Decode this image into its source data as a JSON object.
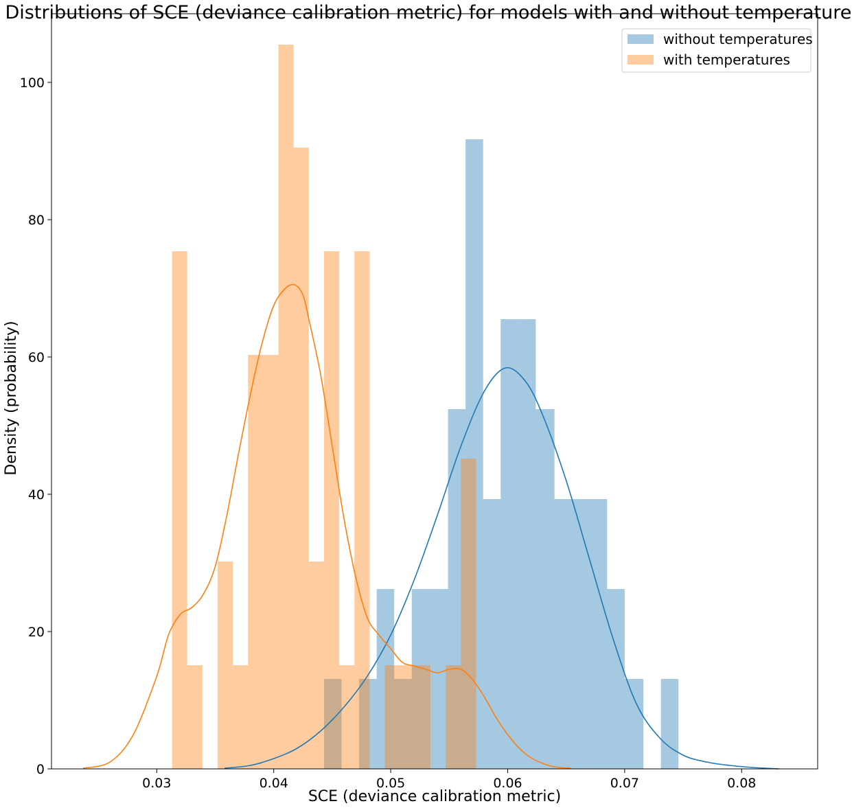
{
  "chart_data": {
    "type": "histogram",
    "title": "Distributions of SCE (deviance calibration metric) for models with and without temperatures",
    "xlabel": "SCE (deviance calibration metric)",
    "ylabel": "Density (probability)",
    "xlim": [
      0.021,
      0.0865
    ],
    "ylim": [
      0,
      110
    ],
    "xticks": [
      0.03,
      0.04,
      0.05,
      0.06,
      0.07,
      0.08
    ],
    "yticks": [
      0,
      20,
      40,
      60,
      80,
      100
    ],
    "legend_position": "top-right",
    "grid": false,
    "series": [
      {
        "name": "without temperatures",
        "color": "#1f77b4",
        "bar_color": "#a6c8e0",
        "bin_width": 0.0015,
        "bins": [
          {
            "x0": 0.0443,
            "x1": 0.0458,
            "height": 13.1
          },
          {
            "x0": 0.0473,
            "x1": 0.0488,
            "height": 13.1
          },
          {
            "x0": 0.0488,
            "x1": 0.0503,
            "height": 26.2
          },
          {
            "x0": 0.0503,
            "x1": 0.0518,
            "height": 13.1
          },
          {
            "x0": 0.0518,
            "x1": 0.0534,
            "height": 26.2
          },
          {
            "x0": 0.0534,
            "x1": 0.0549,
            "height": 26.2
          },
          {
            "x0": 0.0549,
            "x1": 0.0564,
            "height": 52.4
          },
          {
            "x0": 0.0564,
            "x1": 0.0579,
            "height": 91.7
          },
          {
            "x0": 0.0579,
            "x1": 0.0594,
            "height": 39.3
          },
          {
            "x0": 0.0594,
            "x1": 0.0609,
            "height": 65.5
          },
          {
            "x0": 0.0609,
            "x1": 0.0624,
            "height": 65.5
          },
          {
            "x0": 0.0624,
            "x1": 0.064,
            "height": 52.4
          },
          {
            "x0": 0.064,
            "x1": 0.0655,
            "height": 39.3
          },
          {
            "x0": 0.0655,
            "x1": 0.067,
            "height": 39.3
          },
          {
            "x0": 0.067,
            "x1": 0.0685,
            "height": 39.3
          },
          {
            "x0": 0.0685,
            "x1": 0.07,
            "height": 26.2
          },
          {
            "x0": 0.07,
            "x1": 0.0716,
            "height": 13.1
          },
          {
            "x0": 0.0731,
            "x1": 0.0746,
            "height": 13.1
          }
        ],
        "kde": [
          [
            0.0358,
            0.1
          ],
          [
            0.038,
            0.5
          ],
          [
            0.04,
            1.5
          ],
          [
            0.042,
            3.0
          ],
          [
            0.044,
            5.5
          ],
          [
            0.046,
            9.0
          ],
          [
            0.048,
            13.5
          ],
          [
            0.05,
            19.5
          ],
          [
            0.052,
            27.5
          ],
          [
            0.054,
            37.0
          ],
          [
            0.056,
            47.0
          ],
          [
            0.058,
            55.0
          ],
          [
            0.0598,
            58.4
          ],
          [
            0.0615,
            56.5
          ],
          [
            0.063,
            51.5
          ],
          [
            0.065,
            42.0
          ],
          [
            0.067,
            30.5
          ],
          [
            0.069,
            19.0
          ],
          [
            0.071,
            9.5
          ],
          [
            0.073,
            4.5
          ],
          [
            0.075,
            2.0
          ],
          [
            0.077,
            1.0
          ],
          [
            0.079,
            0.5
          ],
          [
            0.081,
            0.2
          ],
          [
            0.0832,
            0.0
          ]
        ]
      },
      {
        "name": "with temperatures",
        "color": "#ff7f0e",
        "bar_color": "#ffc999",
        "bin_width": 0.0013,
        "bins": [
          {
            "x0": 0.0313,
            "x1": 0.0326,
            "height": 75.4
          },
          {
            "x0": 0.0326,
            "x1": 0.0339,
            "height": 15.1
          },
          {
            "x0": 0.0352,
            "x1": 0.0365,
            "height": 30.2
          },
          {
            "x0": 0.0365,
            "x1": 0.0378,
            "height": 15.1
          },
          {
            "x0": 0.0378,
            "x1": 0.0391,
            "height": 60.3
          },
          {
            "x0": 0.0391,
            "x1": 0.0404,
            "height": 60.3
          },
          {
            "x0": 0.0404,
            "x1": 0.0417,
            "height": 105.5
          },
          {
            "x0": 0.0417,
            "x1": 0.043,
            "height": 90.5
          },
          {
            "x0": 0.043,
            "x1": 0.0443,
            "height": 30.2
          },
          {
            "x0": 0.0443,
            "x1": 0.0456,
            "height": 75.4
          },
          {
            "x0": 0.0456,
            "x1": 0.0469,
            "height": 15.1
          },
          {
            "x0": 0.0469,
            "x1": 0.0482,
            "height": 75.4
          },
          {
            "x0": 0.0495,
            "x1": 0.0508,
            "height": 15.1
          },
          {
            "x0": 0.0508,
            "x1": 0.0521,
            "height": 15.1
          },
          {
            "x0": 0.0521,
            "x1": 0.0534,
            "height": 15.1
          },
          {
            "x0": 0.0547,
            "x1": 0.056,
            "height": 15.1
          },
          {
            "x0": 0.056,
            "x1": 0.0573,
            "height": 45.2
          }
        ],
        "kde": [
          [
            0.0237,
            0.1
          ],
          [
            0.026,
            1.0
          ],
          [
            0.028,
            5.0
          ],
          [
            0.03,
            13.5
          ],
          [
            0.031,
            19.5
          ],
          [
            0.032,
            22.5
          ],
          [
            0.033,
            23.5
          ],
          [
            0.034,
            25.5
          ],
          [
            0.035,
            29.5
          ],
          [
            0.036,
            37.0
          ],
          [
            0.037,
            46.0
          ],
          [
            0.038,
            54.5
          ],
          [
            0.039,
            62.0
          ],
          [
            0.04,
            67.5
          ],
          [
            0.041,
            70.0
          ],
          [
            0.0418,
            70.5
          ],
          [
            0.0425,
            69.0
          ],
          [
            0.043,
            65.5
          ],
          [
            0.044,
            57.5
          ],
          [
            0.045,
            47.0
          ],
          [
            0.046,
            36.5
          ],
          [
            0.047,
            28.0
          ],
          [
            0.048,
            22.0
          ],
          [
            0.049,
            19.5
          ],
          [
            0.05,
            17.5
          ],
          [
            0.051,
            15.5
          ],
          [
            0.052,
            15.0
          ],
          [
            0.053,
            14.5
          ],
          [
            0.054,
            14.0
          ],
          [
            0.055,
            14.5
          ],
          [
            0.056,
            14.5
          ],
          [
            0.057,
            13.0
          ],
          [
            0.058,
            10.5
          ],
          [
            0.059,
            7.5
          ],
          [
            0.06,
            5.0
          ],
          [
            0.061,
            3.0
          ],
          [
            0.062,
            1.6
          ],
          [
            0.063,
            0.8
          ],
          [
            0.064,
            0.3
          ],
          [
            0.0654,
            0.1
          ]
        ]
      }
    ]
  }
}
